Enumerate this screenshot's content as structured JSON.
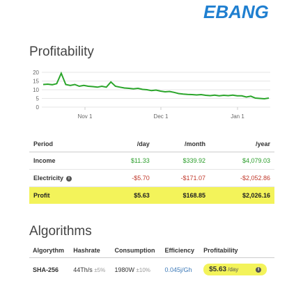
{
  "brand": {
    "logo_text": "EBANG",
    "logo_color": "#1f7fd0"
  },
  "profitability": {
    "title": "Profitability",
    "chart_data": {
      "type": "line",
      "y_ticks": [
        "20",
        "15",
        "10",
        "5",
        "0"
      ],
      "ylim": [
        0,
        20
      ],
      "x_ticks": [
        "Nov 1",
        "Dec 1",
        "Jan 1"
      ],
      "series": [
        {
          "color": "#2aa52a",
          "values": [
            13,
            13.2,
            12.9,
            13.5,
            19.5,
            13,
            12.5,
            13,
            12,
            12.5,
            12,
            11.8,
            11.5,
            12,
            11.5,
            14.5,
            12,
            11.5,
            11,
            10.8,
            10.5,
            10.8,
            10.2,
            10,
            9.5,
            9.8,
            9.2,
            8.8,
            9,
            8.5,
            7.8,
            7.5,
            7.3,
            7.2,
            7,
            7.2,
            6.8,
            6.6,
            6.9,
            6.5,
            6.8,
            6.6,
            6.9,
            6.5,
            6.5,
            5.8,
            6.3,
            5.2,
            5,
            4.8,
            5.2
          ]
        }
      ],
      "grid": true
    },
    "columns": [
      "Period",
      "/day",
      "/month",
      "/year"
    ],
    "rows": [
      {
        "label": "Income",
        "day": "$11.33",
        "month": "$339.92",
        "year": "$4,079.03"
      },
      {
        "label": "Electricity",
        "day": "-$5.70",
        "month": "-$171.07",
        "year": "-$2,052.86"
      },
      {
        "label": "Profit",
        "day": "$5.63",
        "month": "$168.85",
        "year": "$2,026.16"
      }
    ]
  },
  "algorithms": {
    "title": "Algorithms",
    "columns": [
      "Algorythm",
      "Hashrate",
      "Consumption",
      "Efficiency",
      "Profitability"
    ],
    "row": {
      "algo": "SHA-256",
      "hashrate": "44Th/s",
      "hash_tol": "±5%",
      "power": "1980W",
      "power_tol": "±10%",
      "efficiency": "0.045j/Gh",
      "profit": "$5.63",
      "unit": "/day"
    }
  }
}
